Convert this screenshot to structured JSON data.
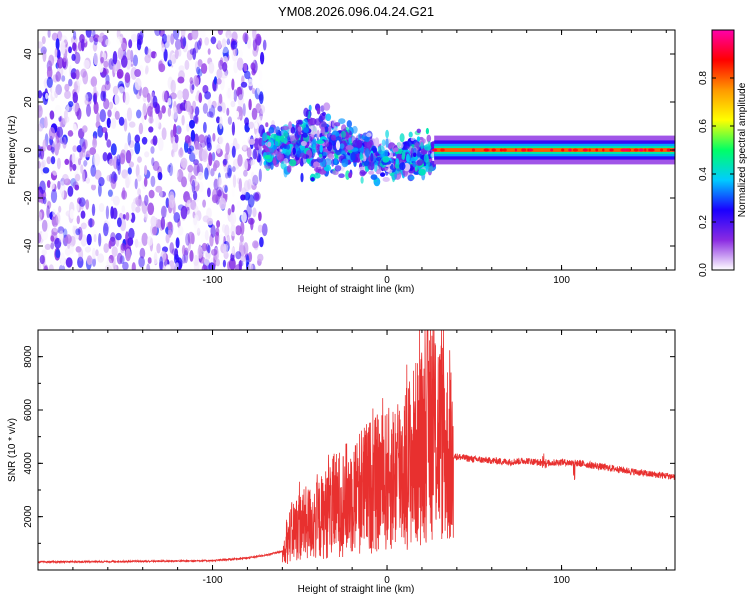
{
  "title": "YM08.2026.096.04.24.G21",
  "chart_data": [
    {
      "type": "heatmap",
      "name": "spectrogram",
      "xlabel": "Height of straight line (km)",
      "ylabel": "Frequency (Hz)",
      "xlim": [
        -200,
        165
      ],
      "ylim": [
        -50,
        50
      ],
      "xticks": [
        -100,
        0,
        100
      ],
      "xtick_labels": [
        "-100",
        "0",
        "100"
      ],
      "yticks": [
        -40,
        -20,
        0,
        20,
        40
      ],
      "ytick_labels": [
        "-40",
        "-20",
        "0",
        "20",
        "40"
      ],
      "colorbar": {
        "label": "Normalized spectral amplitude",
        "range": [
          0,
          1
        ],
        "ticks": [
          0.0,
          0.2,
          0.4,
          0.6,
          0.8
        ],
        "tick_labels": [
          "0.0",
          "0.2",
          "0.4",
          "0.6",
          "0.8"
        ],
        "stops": [
          "#ffffff",
          "#8a2be2",
          "#1a00ff",
          "#00ccff",
          "#00ff66",
          "#ffff00",
          "#ff9900",
          "#ff0000",
          "#ff00aa"
        ]
      },
      "regions": [
        {
          "x": [
            -200,
            -70
          ],
          "description_level": "scattered speckle noise across all frequencies",
          "amplitude": 0.2
        },
        {
          "x": [
            -70,
            27
          ],
          "description_level": "broad signal band around 0 Hz widening near -40 km",
          "amplitude": 0.35
        },
        {
          "x": [
            27,
            165
          ],
          "description_level": "narrow carrier line at 0 Hz",
          "amplitude": 0.8
        }
      ]
    },
    {
      "type": "line",
      "name": "snr",
      "xlabel": "Height of straight line (km)",
      "ylabel": "SNR (10 * v/v)",
      "xlim": [
        -200,
        165
      ],
      "ylim": [
        0,
        9000
      ],
      "xticks": [
        -100,
        0,
        100
      ],
      "xtick_labels": [
        "-100",
        "0",
        "100"
      ],
      "yticks": [
        2000,
        4000,
        6000,
        8000
      ],
      "ytick_labels": [
        "2000",
        "4000",
        "6000",
        "8000"
      ],
      "color": "#e8302f",
      "series": [
        {
          "name": "SNR",
          "x": [
            -200,
            -150,
            -100,
            -80,
            -70,
            -60,
            -55,
            -50,
            -40,
            -30,
            -20,
            -10,
            0,
            10,
            20,
            25,
            30,
            38,
            40,
            50,
            60,
            70,
            80,
            90,
            100,
            110,
            120,
            130,
            140,
            150,
            165
          ],
          "values": [
            300,
            320,
            350,
            450,
            550,
            700,
            1500,
            1800,
            2000,
            2600,
            3000,
            3400,
            3600,
            4200,
            5000,
            6000,
            5500,
            4300,
            4250,
            4150,
            4100,
            4050,
            4100,
            4000,
            4050,
            4000,
            3900,
            3800,
            3700,
            3600,
            3500
          ]
        }
      ]
    }
  ]
}
